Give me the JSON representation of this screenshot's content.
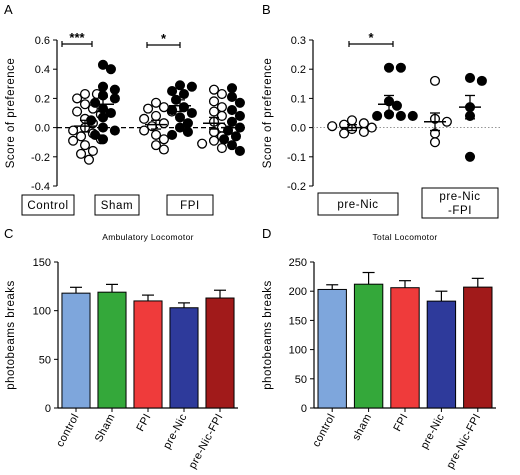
{
  "chart_data": [
    {
      "panel": "A",
      "type": "scatter",
      "ylabel": "Score of preference",
      "ylim": [
        -0.4,
        0.6
      ],
      "yticks": [
        "-0.4",
        "-0.2",
        "0.0",
        "0.2",
        "0.4",
        "0.6"
      ],
      "ytick_values": [
        -0.4,
        -0.2,
        0.0,
        0.2,
        0.4,
        0.6
      ],
      "group_labels": [
        "Control",
        "Sham",
        "FPI"
      ],
      "significance": [
        "***",
        "*"
      ],
      "series": [
        {
          "group": "Control",
          "fill": "open",
          "mean": 0.01,
          "sem": 0.04,
          "values": [
            0.23,
            0.23,
            0.2,
            0.16,
            0.13,
            0.11,
            0.09,
            0.06,
            0.03,
            0.0,
            -0.02,
            -0.04,
            -0.06,
            -0.08,
            -0.09,
            -0.12,
            -0.16,
            -0.18,
            -0.22
          ]
        },
        {
          "group": "Control",
          "fill": "filled",
          "mean": 0.16,
          "sem": 0.05,
          "values": [
            0.43,
            0.4,
            0.28,
            0.26,
            0.22,
            0.2,
            0.17,
            0.13,
            0.1,
            0.07,
            0.05,
            0.0,
            -0.02,
            -0.05,
            -0.08
          ]
        },
        {
          "group": "Sham",
          "fill": "open",
          "mean": 0.02,
          "sem": 0.03,
          "values": [
            0.17,
            0.14,
            0.13,
            0.11,
            0.08,
            0.06,
            0.03,
            0.01,
            -0.02,
            -0.05,
            -0.08,
            -0.12,
            -0.15
          ]
        },
        {
          "group": "Sham",
          "fill": "filled",
          "mean": 0.15,
          "sem": 0.04,
          "values": [
            0.29,
            0.28,
            0.25,
            0.23,
            0.19,
            0.14,
            0.12,
            0.1,
            0.07,
            0.03,
            0.0,
            -0.03,
            -0.05
          ]
        },
        {
          "group": "FPI",
          "fill": "open",
          "mean": 0.03,
          "sem": 0.04,
          "values": [
            0.26,
            0.23,
            0.18,
            0.14,
            0.11,
            0.08,
            0.04,
            0.0,
            -0.03,
            -0.06,
            -0.09,
            -0.11,
            -0.14
          ]
        },
        {
          "group": "FPI",
          "fill": "filled",
          "mean": 0.0,
          "sem": 0.04,
          "values": [
            0.27,
            0.21,
            0.17,
            0.12,
            0.08,
            0.04,
            0.0,
            -0.02,
            -0.06,
            -0.08,
            -0.12,
            -0.16
          ]
        }
      ]
    },
    {
      "panel": "B",
      "type": "scatter",
      "ylabel": "Score of preference",
      "ylim": [
        -0.2,
        0.3
      ],
      "yticks": [
        "-0.2",
        "-0.1",
        "0.0",
        "0.1",
        "0.2",
        "0.3"
      ],
      "ytick_values": [
        -0.2,
        -0.1,
        0.0,
        0.1,
        0.2,
        0.3
      ],
      "group_labels": [
        "pre-Nic",
        "pre-Nic\n-FPI"
      ],
      "significance": [
        "*"
      ],
      "series": [
        {
          "group": "pre-Nic",
          "fill": "open",
          "mean": 0.0,
          "sem": 0.01,
          "values": [
            0.025,
            0.015,
            0.01,
            0.005,
            0.0,
            -0.005,
            -0.015,
            -0.02
          ]
        },
        {
          "group": "pre-Nic",
          "fill": "filled",
          "mean": 0.08,
          "sem": 0.03,
          "values": [
            0.205,
            0.205,
            0.09,
            0.075,
            0.045,
            0.04,
            0.04,
            0.04
          ]
        },
        {
          "group": "pre-Nic-FPI",
          "fill": "open",
          "mean": 0.02,
          "sem": 0.03,
          "values": [
            0.16,
            0.03,
            0.02,
            -0.02,
            -0.05
          ]
        },
        {
          "group": "pre-Nic-FPI",
          "fill": "filled",
          "mean": 0.07,
          "sem": 0.04,
          "values": [
            0.17,
            0.16,
            0.07,
            0.04,
            -0.1
          ]
        }
      ]
    },
    {
      "panel": "C",
      "type": "bar",
      "title": "Ambulatory Locomotor",
      "ylabel": "photobeams breaks",
      "ylim": [
        0,
        150
      ],
      "yticks": [
        "0",
        "50",
        "100",
        "150"
      ],
      "ytick_values": [
        0,
        50,
        100,
        150
      ],
      "categories": [
        "control",
        "Sham",
        "FPI",
        "pre-Nic",
        "pre-Nic-FPI"
      ],
      "values": [
        118,
        119,
        110,
        103,
        113
      ],
      "errors": [
        6,
        8,
        6,
        5,
        8
      ],
      "colors": [
        "#7ea6dc",
        "#34a83a",
        "#ef3b3b",
        "#2e3a9b",
        "#a11a1a"
      ]
    },
    {
      "panel": "D",
      "type": "bar",
      "title": "Total Locomotor",
      "ylabel": "photobeams breaks",
      "ylim": [
        0,
        250
      ],
      "yticks": [
        "0",
        "50",
        "100",
        "150",
        "200",
        "250"
      ],
      "ytick_values": [
        0,
        50,
        100,
        150,
        200,
        250
      ],
      "categories": [
        "control",
        "sham",
        "FPI",
        "pre-Nic",
        "pre-Nic-FPI"
      ],
      "values": [
        203,
        212,
        206,
        183,
        207
      ],
      "errors": [
        8,
        20,
        12,
        17,
        15
      ],
      "colors": [
        "#7ea6dc",
        "#34a83a",
        "#ef3b3b",
        "#2e3a9b",
        "#a11a1a"
      ]
    }
  ],
  "panel_letters": [
    "A",
    "B",
    "C",
    "D"
  ]
}
